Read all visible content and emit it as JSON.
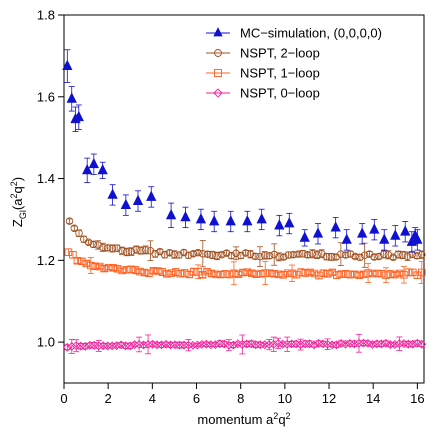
{
  "chart_data": {
    "type": "scatter",
    "xlabel": "momentum a²q²",
    "ylabel": "Z_Gl(a²q²)",
    "xlim": [
      0,
      16.3
    ],
    "ylim": [
      0.9,
      1.8
    ],
    "xticks": [
      0,
      2,
      4,
      6,
      8,
      10,
      12,
      14,
      16
    ],
    "yticks": [
      1.0,
      1.2,
      1.4,
      1.6,
      1.8
    ],
    "xtick_labels": [
      "0",
      "2",
      "4",
      "6",
      "8",
      "10",
      "12",
      "14",
      "16"
    ],
    "ytick_labels": [
      "1.0",
      "1.2",
      "1.4",
      "1.6",
      "1.8"
    ],
    "grid": false,
    "legend_position": "top-right",
    "series": [
      {
        "name": "MC−simulation, (0,0,0,0)",
        "marker": "filled-triangle",
        "color": "#1010d0",
        "points": [
          [
            0.15,
            1.675,
            0.04
          ],
          [
            0.35,
            1.595,
            0.03
          ],
          [
            0.52,
            1.545,
            0.03
          ],
          [
            0.67,
            1.55,
            0.03
          ],
          [
            1.05,
            1.42,
            0.03
          ],
          [
            1.35,
            1.435,
            0.025
          ],
          [
            1.75,
            1.42,
            0.02
          ],
          [
            2.2,
            1.36,
            0.025
          ],
          [
            2.8,
            1.335,
            0.025
          ],
          [
            3.35,
            1.345,
            0.025
          ],
          [
            3.95,
            1.355,
            0.025
          ],
          [
            4.85,
            1.31,
            0.03
          ],
          [
            5.5,
            1.305,
            0.025
          ],
          [
            6.2,
            1.3,
            0.025
          ],
          [
            6.8,
            1.295,
            0.025
          ],
          [
            7.55,
            1.295,
            0.025
          ],
          [
            8.3,
            1.295,
            0.025
          ],
          [
            8.95,
            1.3,
            0.025
          ],
          [
            9.75,
            1.285,
            0.025
          ],
          [
            10.2,
            1.29,
            0.025
          ],
          [
            10.9,
            1.255,
            0.02
          ],
          [
            11.5,
            1.265,
            0.025
          ],
          [
            12.3,
            1.28,
            0.025
          ],
          [
            12.8,
            1.25,
            0.025
          ],
          [
            13.5,
            1.265,
            0.025
          ],
          [
            14.05,
            1.275,
            0.025
          ],
          [
            14.5,
            1.25,
            0.025
          ],
          [
            15.0,
            1.26,
            0.025
          ],
          [
            15.45,
            1.27,
            0.025
          ],
          [
            15.75,
            1.245,
            0.025
          ],
          [
            16.0,
            1.25,
            0.025
          ],
          [
            15.9,
            1.26,
            0.02
          ]
        ]
      },
      {
        "name": "NSPT, 2−loop",
        "marker": "open-circle",
        "color": "#a05020",
        "curve": {
          "a": 1.21,
          "b": 0.195,
          "c": 1.7,
          "d": 0.0001,
          "scatter": 0.01
        },
        "x_start": 0.25,
        "x_end": 16.2,
        "n_points": 75,
        "err": 0.007
      },
      {
        "name": "NSPT, 1−loop",
        "marker": "open-square",
        "color": "#ff6020",
        "curve": {
          "a": 1.165,
          "b": 0.112,
          "c": 1.6,
          "d": 0.0001,
          "scatter": 0.008
        },
        "x_start": 0.2,
        "x_end": 16.2,
        "n_points": 80,
        "err": 0.006
      },
      {
        "name": "NSPT, 0−loop",
        "marker": "open-diamond",
        "color": "#f0209a",
        "curve": {
          "a": 1.0,
          "b": -0.012,
          "c": 0.3,
          "d": 0.0,
          "scatter": 0.004
        },
        "x_start": 0.15,
        "x_end": 16.2,
        "n_points": 80,
        "err": 0.005
      }
    ]
  }
}
